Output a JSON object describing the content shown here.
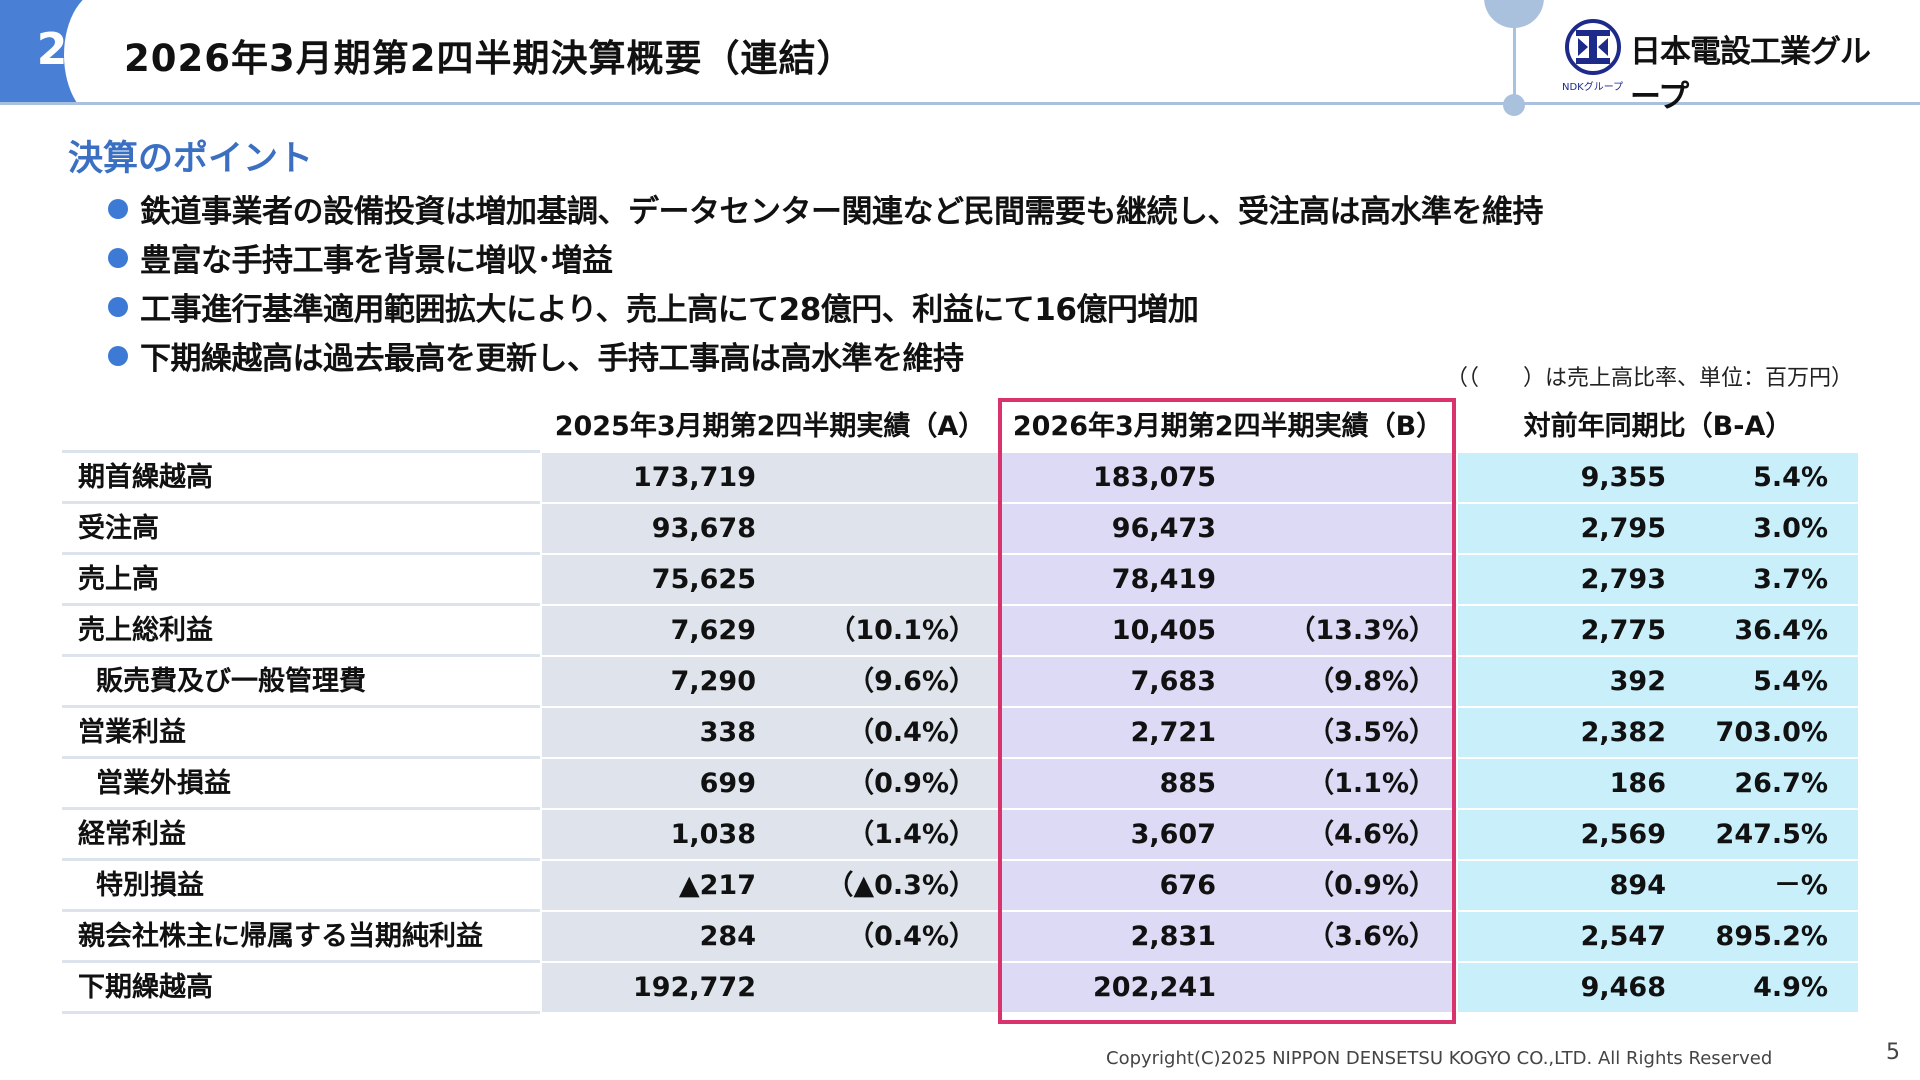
{
  "header": {
    "page_badge": "2",
    "title": "2026年3月期第2四半期決算概要（連結）",
    "logo": {
      "text": "日本電設工業グループ",
      "sub": "NDKグループ"
    }
  },
  "points": {
    "section_title": "決算のポイント",
    "items": [
      "鉄道事業者の設備投資は増加基調、データセンター関連など民間需要も継続し、受注高は高水準を維持",
      "豊富な手持工事を背景に増収･増益",
      "工事進行基準適用範囲拡大により、売上高にて28億円、利益にて16億円増加",
      "下期繰越高は過去最高を更新し、手持工事高は高水準を維持"
    ]
  },
  "unit_note": "（（　　）は売上高比率、単位：百万円）",
  "table": {
    "columns": {
      "a": "2025年3月期第2四半期実績（A）",
      "b": "2026年3月期第2四半期実績（B）",
      "c": "対前年同期比（B-A）"
    },
    "rows": [
      {
        "label": "期首繰越高",
        "indent": false,
        "a_val": "173,719",
        "a_pct": "",
        "b_val": "183,075",
        "b_pct": "",
        "c_val": "9,355",
        "c_pct": "5.4%"
      },
      {
        "label": "受注高",
        "indent": false,
        "a_val": "93,678",
        "a_pct": "",
        "b_val": "96,473",
        "b_pct": "",
        "c_val": "2,795",
        "c_pct": "3.0%"
      },
      {
        "label": "売上高",
        "indent": false,
        "a_val": "75,625",
        "a_pct": "",
        "b_val": "78,419",
        "b_pct": "",
        "c_val": "2,793",
        "c_pct": "3.7%"
      },
      {
        "label": "売上総利益",
        "indent": false,
        "a_val": "7,629",
        "a_pct": "（10.1%）",
        "b_val": "10,405",
        "b_pct": "（13.3%）",
        "c_val": "2,775",
        "c_pct": "36.4%"
      },
      {
        "label": "販売費及び一般管理費",
        "indent": true,
        "a_val": "7,290",
        "a_pct": "（9.6%）",
        "b_val": "7,683",
        "b_pct": "（9.8%）",
        "c_val": "392",
        "c_pct": "5.4%"
      },
      {
        "label": "営業利益",
        "indent": false,
        "a_val": "338",
        "a_pct": "（0.4%）",
        "b_val": "2,721",
        "b_pct": "（3.5%）",
        "c_val": "2,382",
        "c_pct": "703.0%"
      },
      {
        "label": "営業外損益",
        "indent": true,
        "a_val": "699",
        "a_pct": "（0.9%）",
        "b_val": "885",
        "b_pct": "（1.1%）",
        "c_val": "186",
        "c_pct": "26.7%"
      },
      {
        "label": "経常利益",
        "indent": false,
        "a_val": "1,038",
        "a_pct": "（1.4%）",
        "b_val": "3,607",
        "b_pct": "（4.6%）",
        "c_val": "2,569",
        "c_pct": "247.5%"
      },
      {
        "label": "特別損益",
        "indent": true,
        "a_val": "▲217",
        "a_pct": "（▲0.3%）",
        "b_val": "676",
        "b_pct": "（0.9%）",
        "c_val": "894",
        "c_pct": "－%"
      },
      {
        "label": "親会社株主に帰属する当期純利益",
        "indent": false,
        "a_val": "284",
        "a_pct": "（0.4%）",
        "b_val": "2,831",
        "b_pct": "（3.6%）",
        "c_val": "2,547",
        "c_pct": "895.2%"
      },
      {
        "label": "下期繰越高",
        "indent": false,
        "a_val": "192,772",
        "a_pct": "",
        "b_val": "202,241",
        "b_pct": "",
        "c_val": "9,468",
        "c_pct": "4.9%"
      }
    ]
  },
  "footer": {
    "copyright": "Copyright(C)2025 NIPPON DENSETSU KOGYO CO.,LTD. All Rights Reserved",
    "page_number": "5"
  },
  "colors": {
    "accent_blue": "#4a7fd6",
    "section_title": "#3a6fc2",
    "col_a_bg": "#dfe4ec",
    "col_b_bg": "#dcdaf5",
    "col_c_bg": "#c9effa",
    "highlight_frame": "#d9336e"
  }
}
